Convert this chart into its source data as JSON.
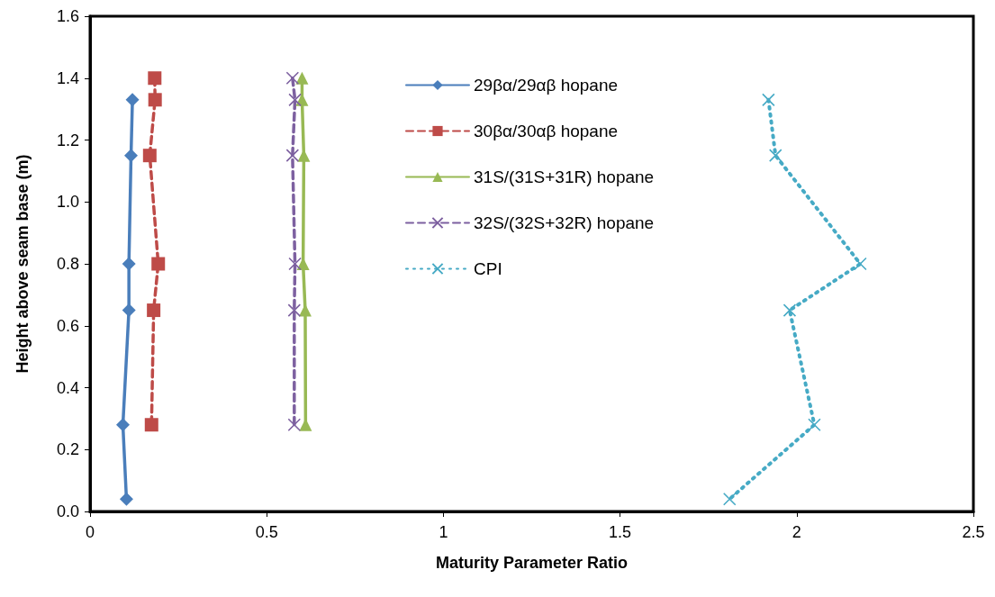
{
  "chart_data": {
    "type": "line",
    "xlabel": "Maturity Parameter Ratio",
    "ylabel": "Height above seam base (m)",
    "xlim": [
      0,
      2.5
    ],
    "xticks": [
      0,
      0.5,
      1,
      1.5,
      2,
      2.5
    ],
    "ylim": [
      0,
      1.6
    ],
    "yticks": [
      {
        "value": 0,
        "label": "0.0"
      },
      {
        "value": 0.2,
        "label": "0.2"
      },
      {
        "value": 0.4,
        "label": "0.4"
      },
      {
        "value": 0.6,
        "label": "0.6"
      },
      {
        "value": 0.8,
        "label": "0.8"
      },
      {
        "value": 1.0,
        "label": "1.0"
      },
      {
        "value": 1.2,
        "label": "1.2"
      },
      {
        "value": 1.4,
        "label": "1.4"
      },
      {
        "value": 1.6,
        "label": "1.6"
      }
    ],
    "grid": false,
    "legend": "top",
    "series": [
      {
        "name": "29βα/29αβ hopane",
        "color": "#4a7ebb",
        "marker": "diamond",
        "line_style": "solid",
        "x": [
          0.12,
          0.116,
          0.11,
          0.11,
          0.093,
          0.103
        ],
        "values": [
          1.33,
          1.15,
          0.8,
          0.65,
          0.28,
          0.04
        ]
      },
      {
        "name": "30βα/30αβ hopane",
        "color": "#be4b48",
        "marker": "square",
        "line_style": "dashed",
        "x": [
          0.183,
          0.184,
          0.169,
          0.193,
          0.18,
          0.174
        ],
        "values": [
          1.4,
          1.33,
          1.15,
          0.8,
          0.65,
          0.28
        ]
      },
      {
        "name": "31S/(31S+31R) hopane",
        "color": "#98b954",
        "marker": "triangle",
        "line_style": "solid",
        "x": [
          0.6,
          0.6,
          0.605,
          0.603,
          0.609,
          0.61
        ],
        "values": [
          1.4,
          1.33,
          1.15,
          0.8,
          0.65,
          0.28
        ]
      },
      {
        "name": "32S/(32S+32R) hopane",
        "color": "#7d60a0",
        "marker": "cross",
        "line_style": "dashed",
        "x": [
          0.573,
          0.58,
          0.573,
          0.58,
          0.578,
          0.578
        ],
        "values": [
          1.4,
          1.33,
          1.15,
          0.8,
          0.65,
          0.28
        ]
      },
      {
        "name": "CPI",
        "color": "#46aac5",
        "marker": "cross",
        "line_style": "dotted",
        "x": [
          1.92,
          1.94,
          2.18,
          1.98,
          2.05,
          1.81
        ],
        "values": [
          1.33,
          1.15,
          0.8,
          0.65,
          0.28,
          0.04
        ]
      }
    ]
  }
}
